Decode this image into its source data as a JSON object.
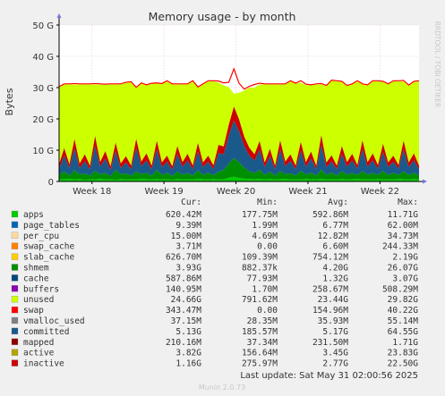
{
  "colors": {
    "background": "#f0f0f0",
    "plot_background": "#ffffff",
    "grid": "#e3b8b8",
    "axis": "#000000",
    "text": "#333333",
    "watermark": "#c8c8c8"
  },
  "watermark": "RRDTOOL / TOBI OETIKER",
  "footer": {
    "last_update": "Last update: Sat May 31 02:00:56 2025",
    "generator": "Munin 2.0.73"
  },
  "legend": {
    "headers": [
      "Cur:",
      "Min:",
      "Avg:",
      "Max:"
    ],
    "rows": [
      {
        "name": "apps",
        "color": "#00cc00",
        "cur": "620.42M",
        "min": "177.75M",
        "avg": "592.86M",
        "max": "11.71G"
      },
      {
        "name": "page_tables",
        "color": "#0066b3",
        "cur": "9.39M",
        "min": "1.99M",
        "avg": "6.77M",
        "max": "62.00M"
      },
      {
        "name": "per_cpu",
        "color": "#ffd9a0",
        "cur": "15.00M",
        "min": "4.69M",
        "avg": "12.82M",
        "max": "34.73M"
      },
      {
        "name": "swap_cache",
        "color": "#ff8000",
        "cur": "3.71M",
        "min": "0.00",
        "avg": "6.60M",
        "max": "244.33M"
      },
      {
        "name": "slab_cache",
        "color": "#ffcc00",
        "cur": "626.70M",
        "min": "109.39M",
        "avg": "754.12M",
        "max": "2.19G"
      },
      {
        "name": "shmem",
        "color": "#008f00",
        "cur": "3.93G",
        "min": "882.37k",
        "avg": "4.20G",
        "max": "26.07G"
      },
      {
        "name": "cache",
        "color": "#00487d",
        "cur": "587.86M",
        "min": "77.93M",
        "avg": "1.32G",
        "max": "3.07G"
      },
      {
        "name": "buffers",
        "color": "#8e00b3",
        "cur": "140.95M",
        "min": "1.70M",
        "avg": "258.67M",
        "max": "508.29M"
      },
      {
        "name": "unused",
        "color": "#ccff00",
        "cur": "24.66G",
        "min": "791.62M",
        "avg": "23.44G",
        "max": "29.82G"
      },
      {
        "name": "swap",
        "color": "#ff0000",
        "cur": "343.47M",
        "min": "0.00",
        "avg": "154.96M",
        "max": "40.22G"
      },
      {
        "name": "vmalloc_used",
        "color": "#808080",
        "cur": "37.15M",
        "min": "28.35M",
        "avg": "35.93M",
        "max": "55.14M"
      },
      {
        "name": "committed",
        "color": "#1a5a8a",
        "cur": "5.13G",
        "min": "185.57M",
        "avg": "5.17G",
        "max": "64.55G"
      },
      {
        "name": "mapped",
        "color": "#8e0000",
        "cur": "210.16M",
        "min": "37.34M",
        "avg": "231.50M",
        "max": "1.71G"
      },
      {
        "name": "active",
        "color": "#b3a300",
        "cur": "3.82G",
        "min": "156.64M",
        "avg": "3.45G",
        "max": "23.83G"
      },
      {
        "name": "inactive",
        "color": "#cc0000",
        "cur": "1.16G",
        "min": "275.97M",
        "avg": "2.77G",
        "max": "22.50G"
      }
    ]
  },
  "chart_data": {
    "type": "area",
    "title": "Memory usage - by month",
    "ylabel": "Bytes",
    "xlabel": "",
    "ylim": [
      0,
      50
    ],
    "yticks": [
      0,
      10,
      20,
      30,
      40,
      50
    ],
    "ytick_labels": [
      "0",
      "10 G",
      "20 G",
      "30 G",
      "40 G",
      "50 G"
    ],
    "x_ticks": [
      "Week 18",
      "Week 19",
      "Week 20",
      "Week 21",
      "Week 22"
    ],
    "x": [
      0,
      0.5,
      1,
      1.5,
      2,
      2.5,
      3,
      3.5,
      4,
      4.5,
      5,
      5.5,
      6,
      6.5,
      7,
      7.5,
      8,
      8.5,
      9,
      9.5,
      10,
      10.5,
      11,
      11.5,
      12,
      12.5,
      13,
      13.5,
      14,
      14.5,
      15,
      15.5,
      16,
      16.5,
      17,
      17.5,
      18,
      18.5,
      19,
      19.5,
      20,
      20.5,
      21,
      21.5,
      22,
      22.5,
      23,
      23.5,
      24,
      24.5,
      25,
      25.5,
      26,
      26.5,
      27,
      27.5,
      28,
      28.5,
      29,
      29.5,
      30,
      30.5,
      31,
      31.5,
      32,
      32.5,
      33,
      33.5,
      34,
      34.5,
      35
    ],
    "x_units": "days since start of period",
    "x_tick_positions": [
      3.2,
      10.2,
      17.2,
      24.2,
      31.2
    ],
    "grid": true,
    "legend_position": "bottom",
    "series": [
      {
        "name": "apps",
        "color": "#00cc00",
        "values": [
          0.6,
          0.7,
          0.9,
          0.6,
          0.8,
          0.5,
          0.7,
          0.6,
          0.9,
          0.6,
          0.7,
          0.5,
          0.8,
          0.6,
          0.7,
          0.6,
          0.9,
          0.7,
          0.6,
          0.8,
          0.6,
          0.7,
          0.5,
          0.8,
          0.6,
          0.7,
          0.6,
          0.9,
          0.7,
          0.6,
          0.8,
          0.6,
          0.7,
          1.2,
          1.5,
          1.1,
          0.9,
          0.8,
          0.7,
          0.9,
          0.6,
          0.8,
          0.6,
          0.7,
          0.9,
          0.6,
          0.7,
          0.6,
          0.8,
          0.7,
          0.6,
          0.9,
          0.6,
          0.7,
          0.6,
          0.8,
          0.6,
          0.7,
          0.9,
          0.6,
          0.7,
          0.6,
          0.8,
          0.6,
          0.7,
          0.6,
          0.9,
          0.7,
          0.6,
          0.8,
          0.6
        ]
      },
      {
        "name": "shmem",
        "color": "#008f00",
        "values": [
          1.5,
          2.5,
          1.0,
          3.0,
          1.5,
          2.0,
          1.2,
          2.8,
          1.4,
          2.2,
          1.0,
          3.2,
          1.5,
          2.0,
          1.2,
          2.6,
          1.5,
          2.0,
          1.3,
          2.9,
          1.5,
          2.1,
          1.2,
          2.4,
          1.6,
          2.0,
          1.3,
          2.7,
          1.4,
          2.2,
          1.2,
          2.5,
          3.0,
          4.5,
          6.0,
          5.0,
          3.5,
          2.5,
          2.0,
          2.8,
          1.5,
          2.3,
          1.3,
          2.6,
          1.5,
          2.0,
          1.2,
          2.8,
          1.4,
          2.1,
          1.3,
          2.9,
          1.5,
          2.2,
          1.3,
          2.5,
          1.6,
          2.0,
          1.2,
          2.7,
          1.5,
          2.1,
          1.3,
          2.8,
          1.4,
          2.2,
          1.2,
          2.6,
          1.5,
          2.0,
          1.3
        ]
      },
      {
        "name": "committed",
        "color": "#1a5a8a",
        "values": [
          2.0,
          5.0,
          2.5,
          7.0,
          2.0,
          4.0,
          2.0,
          8.0,
          2.5,
          4.5,
          2.0,
          6.0,
          2.0,
          3.5,
          2.0,
          7.5,
          2.5,
          4.0,
          2.0,
          6.5,
          2.5,
          3.5,
          2.0,
          5.5,
          2.5,
          4.0,
          2.0,
          6.0,
          2.5,
          3.5,
          2.0,
          6.0,
          5.0,
          9.0,
          12.0,
          10.0,
          7.0,
          5.0,
          4.0,
          6.5,
          2.5,
          5.0,
          2.0,
          7.0,
          2.5,
          4.0,
          2.0,
          6.5,
          2.5,
          4.5,
          2.0,
          8.0,
          2.5,
          3.5,
          2.0,
          5.5,
          2.5,
          4.0,
          2.0,
          7.0,
          2.5,
          4.0,
          2.0,
          6.0,
          2.5,
          3.5,
          2.0,
          7.0,
          2.5,
          4.0,
          2.0
        ]
      },
      {
        "name": "inactive",
        "color": "#cc0000",
        "values": [
          1.5,
          2.5,
          1.2,
          3.0,
          1.5,
          2.2,
          1.2,
          3.2,
          1.5,
          2.4,
          1.2,
          2.8,
          1.5,
          2.0,
          1.2,
          3.0,
          1.5,
          2.3,
          1.2,
          2.9,
          1.5,
          2.0,
          1.2,
          2.7,
          1.5,
          2.2,
          1.2,
          2.8,
          1.5,
          2.0,
          1.2,
          2.6,
          2.5,
          3.5,
          4.5,
          3.8,
          3.0,
          2.5,
          2.0,
          2.8,
          1.5,
          2.4,
          1.2,
          2.9,
          1.5,
          2.1,
          1.2,
          2.8,
          1.5,
          2.3,
          1.2,
          3.1,
          1.5,
          2.0,
          1.2,
          2.6,
          1.5,
          2.2,
          1.2,
          2.9,
          1.5,
          2.3,
          1.2,
          2.7,
          1.5,
          2.0,
          1.2,
          2.8,
          1.5,
          2.2,
          1.2
        ]
      },
      {
        "name": "unused",
        "color": "#ccff00",
        "values": [
          24.4,
          20.3,
          25.4,
          17.4,
          25.2,
          22.3,
          25.9,
          16.4,
          24.7,
          21.2,
          26.1,
          18.5,
          25.2,
          23.4,
          26.6,
          16.1,
          24.9,
          21.7,
          26.1,
          18.2,
          25.0,
          23.7,
          26.1,
          19.6,
          24.8,
          22.1,
          26.9,
          17.6,
          24.9,
          23.7,
          26.8,
          19.9,
          19.5,
          12.0,
          4.0,
          8.5,
          14.6,
          19.2,
          21.3,
          18.0,
          24.9,
          20.5,
          25.9,
          17.8,
          24.6,
          23.3,
          26.1,
          18.9,
          24.6,
          21.1,
          25.9,
          16.2,
          24.4,
          23.8,
          26.9,
          20.4,
          24.3,
          22.1,
          26.7,
          17.8,
          24.5,
          23.0,
          26.7,
          19.7,
          24.9,
          23.7,
          26.7,
          18.9,
          24.4,
          22.8,
          26.9
        ]
      },
      {
        "name": "swap",
        "color": "#ff0000",
        "values": [
          0.3,
          0.2,
          0.2,
          0.3,
          0.2,
          0.2,
          0.2,
          0.3,
          0.2,
          0.2,
          0.2,
          0.2,
          0.2,
          0.2,
          0.2,
          0.3,
          0.2,
          0.2,
          0.2,
          0.2,
          0.2,
          0.2,
          0.2,
          0.2,
          0.2,
          0.2,
          0.2,
          0.2,
          0.2,
          0.2,
          0.2,
          0.5,
          0.8,
          1.5,
          8.0,
          3.0,
          0.5,
          0.4,
          1.0,
          0.4,
          0.2,
          0.2,
          0.2,
          0.2,
          0.2,
          0.2,
          0.2,
          0.6,
          0.3,
          0.2,
          0.2,
          0.2,
          0.2,
          0.2,
          0.2,
          0.2,
          0.2,
          0.2,
          0.2,
          0.2,
          0.2,
          0.2,
          0.2,
          0.2,
          0.2,
          0.2,
          0.2,
          0.3,
          0.3,
          0.2,
          0.2
        ]
      }
    ]
  }
}
